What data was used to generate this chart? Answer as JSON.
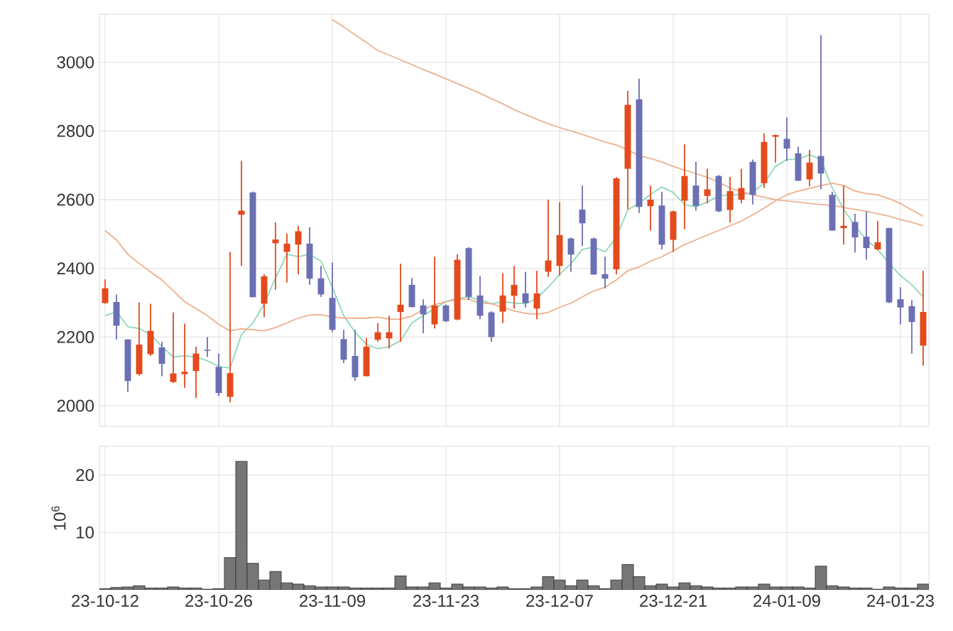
{
  "chart_data": [
    {
      "type": "candlestick",
      "categories": [
        null,
        null,
        null,
        null,
        null,
        null,
        null,
        null,
        null,
        null,
        null,
        null,
        null,
        null,
        null,
        null,
        null,
        null,
        null,
        null,
        null,
        null,
        null,
        null,
        null,
        null,
        null,
        null,
        null,
        null,
        null,
        null,
        null,
        null,
        null,
        null,
        null,
        null,
        null,
        null,
        null,
        null,
        null,
        null,
        null,
        null,
        null,
        null,
        null,
        null,
        null,
        null,
        null,
        null,
        null,
        null,
        null,
        null,
        null,
        null,
        null,
        null,
        null,
        null,
        null,
        null,
        null,
        null,
        null,
        null,
        null,
        null,
        null
      ],
      "ohlc": [
        [
          2299,
          2368,
          2297,
          2342
        ],
        [
          2302,
          2324,
          2193,
          2233
        ],
        [
          2193,
          2193,
          2040,
          2072
        ],
        [
          2092,
          2301,
          2088,
          2178
        ],
        [
          2150,
          2297,
          2145,
          2218
        ],
        [
          2170,
          2186,
          2086,
          2122
        ],
        [
          2069,
          2272,
          2066,
          2094
        ],
        [
          2092,
          2239,
          2052,
          2099
        ],
        [
          2101,
          2172,
          2023,
          2152
        ],
        [
          2163,
          2200,
          2142,
          2160
        ],
        [
          2113,
          2152,
          2028,
          2037
        ],
        [
          2026,
          2448,
          2010,
          2095
        ],
        [
          2556,
          2713,
          2407,
          2568
        ],
        [
          2621,
          2624,
          2316,
          2316
        ],
        [
          2297,
          2383,
          2258,
          2377
        ],
        [
          2473,
          2534,
          2338,
          2484
        ],
        [
          2448,
          2501,
          2359,
          2472
        ],
        [
          2469,
          2524,
          2383,
          2508
        ],
        [
          2472,
          2520,
          2352,
          2370
        ],
        [
          2371,
          2407,
          2317,
          2324
        ],
        [
          2314,
          2417,
          2214,
          2221
        ],
        [
          2194,
          2221,
          2124,
          2134
        ],
        [
          2145,
          2221,
          2073,
          2083
        ],
        [
          2086,
          2197,
          2086,
          2172
        ],
        [
          2192,
          2241,
          2186,
          2214
        ],
        [
          2196,
          2262,
          2166,
          2214
        ],
        [
          2273,
          2414,
          2186,
          2294
        ],
        [
          2352,
          2372,
          2287,
          2287
        ],
        [
          2292,
          2310,
          2211,
          2266
        ],
        [
          2237,
          2434,
          2225,
          2292
        ],
        [
          2292,
          2295,
          2244,
          2246
        ],
        [
          2251,
          2441,
          2249,
          2425
        ],
        [
          2459,
          2462,
          2308,
          2317
        ],
        [
          2321,
          2377,
          2252,
          2262
        ],
        [
          2272,
          2275,
          2186,
          2200
        ],
        [
          2274,
          2386,
          2241,
          2321
        ],
        [
          2320,
          2407,
          2283,
          2352
        ],
        [
          2327,
          2390,
          2286,
          2299
        ],
        [
          2283,
          2393,
          2252,
          2327
        ],
        [
          2390,
          2600,
          2375,
          2423
        ],
        [
          2407,
          2593,
          2379,
          2497
        ],
        [
          2487,
          2490,
          2390,
          2440
        ],
        [
          2571,
          2641,
          2465,
          2531
        ],
        [
          2487,
          2490,
          2382,
          2382
        ],
        [
          2383,
          2434,
          2342,
          2370
        ],
        [
          2397,
          2665,
          2382,
          2662
        ],
        [
          2690,
          2917,
          2572,
          2876
        ],
        [
          2892,
          2952,
          2561,
          2579
        ],
        [
          2581,
          2641,
          2510,
          2600
        ],
        [
          2583,
          2623,
          2455,
          2469
        ],
        [
          2483,
          2568,
          2448,
          2566
        ],
        [
          2597,
          2761,
          2514,
          2669
        ],
        [
          2641,
          2710,
          2568,
          2582
        ],
        [
          2611,
          2690,
          2589,
          2630
        ],
        [
          2669,
          2672,
          2564,
          2566
        ],
        [
          2570,
          2666,
          2534,
          2625
        ],
        [
          2600,
          2690,
          2589,
          2634
        ],
        [
          2710,
          2717,
          2586,
          2614
        ],
        [
          2648,
          2793,
          2634,
          2768
        ],
        [
          2783,
          2790,
          2708,
          2788
        ],
        [
          2777,
          2839,
          2713,
          2749
        ],
        [
          2735,
          2754,
          2655,
          2655
        ],
        [
          2659,
          2745,
          2639,
          2708
        ],
        [
          2727,
          3079,
          2630,
          2676
        ],
        [
          2614,
          2623,
          2510,
          2510
        ],
        [
          2517,
          2641,
          2469,
          2524
        ],
        [
          2535,
          2559,
          2446,
          2490
        ],
        [
          2492,
          2566,
          2425,
          2459
        ],
        [
          2455,
          2538,
          2453,
          2476
        ],
        [
          2517,
          2519,
          2299,
          2301
        ],
        [
          2310,
          2345,
          2237,
          2286
        ],
        [
          2290,
          2308,
          2152,
          2244
        ],
        [
          2175,
          2393,
          2117,
          2273
        ]
      ],
      "colors": [
        "#e34a1c",
        "#6b6fb3",
        "#6b6fb3",
        "#e34a1c",
        "#e34a1c",
        "#6b6fb3",
        "#e34a1c",
        "#e34a1c",
        "#e34a1c",
        "#6b6fb3",
        "#6b6fb3",
        "#e34a1c",
        "#e34a1c",
        "#6b6fb3",
        "#e34a1c",
        "#e34a1c",
        "#e34a1c",
        "#e34a1c",
        "#6b6fb3",
        "#6b6fb3",
        "#6b6fb3",
        "#6b6fb3",
        "#6b6fb3",
        "#e34a1c",
        "#e34a1c",
        "#e34a1c",
        "#e34a1c",
        "#6b6fb3",
        "#6b6fb3",
        "#e34a1c",
        "#6b6fb3",
        "#e34a1c",
        "#6b6fb3",
        "#6b6fb3",
        "#6b6fb3",
        "#e34a1c",
        "#e34a1c",
        "#6b6fb3",
        "#e34a1c",
        "#e34a1c",
        "#e34a1c",
        "#6b6fb3",
        "#6b6fb3",
        "#6b6fb3",
        "#6b6fb3",
        "#e34a1c",
        "#e34a1c",
        "#6b6fb3",
        "#e34a1c",
        "#6b6fb3",
        "#e34a1c",
        "#e34a1c",
        "#6b6fb3",
        "#e34a1c",
        "#6b6fb3",
        "#e34a1c",
        "#e34a1c",
        "#6b6fb3",
        "#e34a1c",
        "#e34a1c",
        "#6b6fb3",
        "#6b6fb3",
        "#e34a1c",
        "#6b6fb3",
        "#6b6fb3",
        "#e34a1c",
        "#6b6fb3",
        "#6b6fb3",
        "#e34a1c",
        "#6b6fb3",
        "#6b6fb3",
        "#6b6fb3",
        "#e34a1c"
      ],
      "series": [
        {
          "type": "line",
          "color": "#8fd8b8",
          "values": [
            2262,
            2274,
            2230,
            2225,
            2207,
            2172,
            2142,
            2145,
            2142,
            2131,
            2114,
            2110,
            2207,
            2241,
            2297,
            2372,
            2441,
            2434,
            2441,
            2421,
            2345,
            2262,
            2214,
            2179,
            2166,
            2172,
            2189,
            2241,
            2262,
            2283,
            2303,
            2313,
            2317,
            2308,
            2297,
            2303,
            2299,
            2297,
            2313,
            2345,
            2382,
            2414,
            2455,
            2462,
            2448,
            2490,
            2570,
            2590,
            2615,
            2637,
            2621,
            2586,
            2579,
            2593,
            2611,
            2614,
            2614,
            2621,
            2648,
            2697,
            2717,
            2717,
            2731,
            2717,
            2634,
            2572,
            2524,
            2483,
            2455,
            2414,
            2379,
            2352,
            2317
          ]
        },
        {
          "type": "line",
          "color": "#efae8a",
          "values": [
            2510,
            2483,
            2441,
            2414,
            2390,
            2366,
            2335,
            2303,
            2283,
            2262,
            2237,
            2218,
            2224,
            2221,
            2218,
            2228,
            2241,
            2255,
            2264,
            2265,
            2259,
            2255,
            2255,
            2255,
            2258,
            2252,
            2252,
            2261,
            2280,
            2294,
            2303,
            2310,
            2310,
            2299,
            2297,
            2286,
            2276,
            2269,
            2266,
            2272,
            2286,
            2299,
            2317,
            2334,
            2345,
            2366,
            2393,
            2404,
            2421,
            2434,
            2451,
            2469,
            2483,
            2497,
            2510,
            2524,
            2538,
            2556,
            2575,
            2597,
            2614,
            2625,
            2633,
            2641,
            2648,
            2641,
            2625,
            2618,
            2614,
            2603,
            2589,
            2570,
            2552
          ]
        },
        {
          "type": "line",
          "color": "#eab392",
          "values": [
            null,
            null,
            null,
            null,
            null,
            null,
            null,
            null,
            null,
            null,
            null,
            null,
            null,
            null,
            null,
            null,
            null,
            null,
            null,
            null,
            3124,
            3103,
            3080,
            3058,
            3034,
            3021,
            3007,
            2993,
            2979,
            2966,
            2952,
            2938,
            2924,
            2910,
            2894,
            2879,
            2862,
            2848,
            2834,
            2821,
            2810,
            2800,
            2790,
            2779,
            2768,
            2759,
            2745,
            2728,
            2720,
            2710,
            2697,
            2686,
            2676,
            2665,
            2651,
            2634,
            2623,
            2614,
            2607,
            2600,
            2596,
            2593,
            2589,
            2586,
            2583,
            2577,
            2572,
            2566,
            2559,
            2552,
            2542,
            2534,
            2524
          ]
        }
      ],
      "ylim": [
        1940,
        3140
      ],
      "yticks": [
        2000,
        2200,
        2400,
        2600,
        2800,
        3000
      ],
      "grid": true,
      "tick_labels": "y"
    },
    {
      "type": "bar",
      "categories": [
        "23-10-12",
        null,
        null,
        null,
        null,
        null,
        null,
        null,
        null,
        null,
        "23-10-26",
        null,
        null,
        null,
        null,
        null,
        null,
        null,
        null,
        null,
        "23-11-09",
        null,
        null,
        null,
        null,
        null,
        null,
        null,
        null,
        null,
        "23-11-23",
        null,
        null,
        null,
        null,
        null,
        null,
        null,
        null,
        null,
        "23-12-07",
        null,
        null,
        null,
        null,
        null,
        null,
        null,
        null,
        null,
        "23-12-21",
        null,
        null,
        null,
        null,
        null,
        null,
        null,
        null,
        null,
        "24-01-09",
        null,
        null,
        null,
        null,
        null,
        null,
        null,
        null,
        null,
        "24-01-23",
        null,
        null
      ],
      "values": [
        0.2,
        0.4,
        0.5,
        0.7,
        0.3,
        0.3,
        0.5,
        0.3,
        0.3,
        0.1,
        0.2,
        5.6,
        22.4,
        4.6,
        1.7,
        3.2,
        1.2,
        1.0,
        0.7,
        0.5,
        0.5,
        0.5,
        0.3,
        0.3,
        0.3,
        0.3,
        2.4,
        0.5,
        0.5,
        1.2,
        0.3,
        1.0,
        0.5,
        0.5,
        0.3,
        0.5,
        0.2,
        0.2,
        0.5,
        2.3,
        1.7,
        0.7,
        1.7,
        0.7,
        0.2,
        1.7,
        4.4,
        2.3,
        0.7,
        1.0,
        0.5,
        1.2,
        0.7,
        0.5,
        0.3,
        0.3,
        0.5,
        0.5,
        1.0,
        0.5,
        0.5,
        0.5,
        0.3,
        4.1,
        0.7,
        0.5,
        0.3,
        0.3,
        0.1,
        0.5,
        0.3,
        0.3,
        1.0
      ],
      "color": "#767676",
      "ylabel": "10$^{6}$",
      "ylim": [
        0,
        25
      ],
      "yticks": [
        10,
        20
      ],
      "grid": true
    }
  ]
}
